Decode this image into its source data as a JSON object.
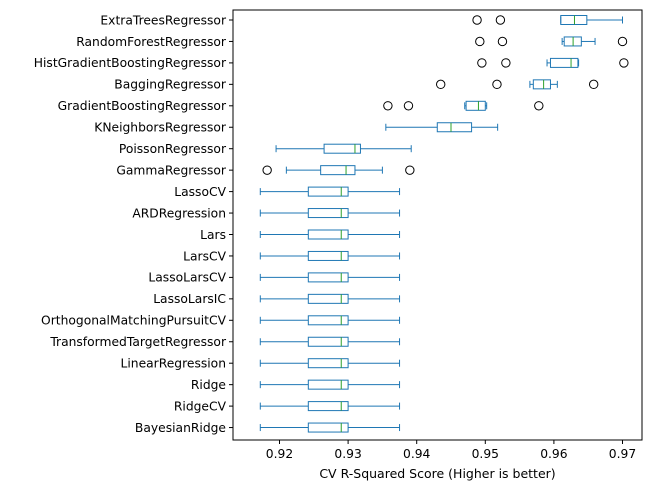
{
  "chart_data": {
    "type": "boxplot",
    "orientation": "horizontal",
    "xlabel": "CV R-Squared Score (Higher is better)",
    "ylabel": "",
    "title": "",
    "xlim": [
      0.915,
      0.973
    ],
    "xticks": [
      0.92,
      0.93,
      0.94,
      0.95,
      0.96,
      0.97
    ],
    "xtick_labels": [
      "0.92",
      "0.93",
      "0.94",
      "0.95",
      "0.96",
      "0.97"
    ],
    "grid": false,
    "colors": {
      "box": "#1f77b4",
      "median": "#2ca02c",
      "axis": "#000000"
    },
    "series": [
      {
        "name": "ExtraTreesRegressor",
        "whisker_low": 0.961,
        "q1": 0.961,
        "median": 0.963,
        "q3": 0.9648,
        "whisker_high": 0.97,
        "outliers": [
          0.9488,
          0.9522
        ]
      },
      {
        "name": "RandomForestRegressor",
        "whisker_low": 0.9612,
        "q1": 0.9615,
        "median": 0.9628,
        "q3": 0.964,
        "whisker_high": 0.966,
        "outliers": [
          0.9492,
          0.9525,
          0.97
        ]
      },
      {
        "name": "HistGradientBoostingRegressor",
        "whisker_low": 0.959,
        "q1": 0.9595,
        "median": 0.9625,
        "q3": 0.9635,
        "whisker_high": 0.9636,
        "outliers": [
          0.9495,
          0.953,
          0.9702
        ]
      },
      {
        "name": "BaggingRegressor",
        "whisker_low": 0.9565,
        "q1": 0.957,
        "median": 0.9585,
        "q3": 0.9595,
        "whisker_high": 0.9605,
        "outliers": [
          0.9435,
          0.9517,
          0.9658
        ]
      },
      {
        "name": "GradientBoostingRegressor",
        "whisker_low": 0.947,
        "q1": 0.9472,
        "median": 0.949,
        "q3": 0.95,
        "whisker_high": 0.9502,
        "outliers": [
          0.9358,
          0.9388,
          0.9578
        ]
      },
      {
        "name": "KNeighborsRegressor",
        "whisker_low": 0.9355,
        "q1": 0.943,
        "median": 0.945,
        "q3": 0.948,
        "whisker_high": 0.9518,
        "outliers": []
      },
      {
        "name": "PoissonRegressor",
        "whisker_low": 0.9195,
        "q1": 0.9265,
        "median": 0.931,
        "q3": 0.9318,
        "whisker_high": 0.9392,
        "outliers": []
      },
      {
        "name": "GammaRegressor",
        "whisker_low": 0.921,
        "q1": 0.926,
        "median": 0.9297,
        "q3": 0.931,
        "whisker_high": 0.935,
        "outliers": [
          0.9182,
          0.939
        ]
      },
      {
        "name": "LassoCV",
        "whisker_low": 0.9172,
        "q1": 0.9242,
        "median": 0.929,
        "q3": 0.93,
        "whisker_high": 0.9375,
        "outliers": []
      },
      {
        "name": "ARDRegression",
        "whisker_low": 0.9172,
        "q1": 0.9242,
        "median": 0.929,
        "q3": 0.93,
        "whisker_high": 0.9375,
        "outliers": []
      },
      {
        "name": "Lars",
        "whisker_low": 0.9172,
        "q1": 0.9242,
        "median": 0.929,
        "q3": 0.93,
        "whisker_high": 0.9375,
        "outliers": []
      },
      {
        "name": "LarsCV",
        "whisker_low": 0.9172,
        "q1": 0.9242,
        "median": 0.929,
        "q3": 0.93,
        "whisker_high": 0.9375,
        "outliers": []
      },
      {
        "name": "LassoLarsCV",
        "whisker_low": 0.9172,
        "q1": 0.9242,
        "median": 0.929,
        "q3": 0.93,
        "whisker_high": 0.9375,
        "outliers": []
      },
      {
        "name": "LassoLarsIC",
        "whisker_low": 0.9172,
        "q1": 0.9242,
        "median": 0.929,
        "q3": 0.93,
        "whisker_high": 0.9375,
        "outliers": []
      },
      {
        "name": "OrthogonalMatchingPursuitCV",
        "whisker_low": 0.9172,
        "q1": 0.9242,
        "median": 0.929,
        "q3": 0.93,
        "whisker_high": 0.9375,
        "outliers": []
      },
      {
        "name": "TransformedTargetRegressor",
        "whisker_low": 0.9172,
        "q1": 0.9242,
        "median": 0.929,
        "q3": 0.93,
        "whisker_high": 0.9375,
        "outliers": []
      },
      {
        "name": "LinearRegression",
        "whisker_low": 0.9172,
        "q1": 0.9242,
        "median": 0.929,
        "q3": 0.93,
        "whisker_high": 0.9375,
        "outliers": []
      },
      {
        "name": "Ridge",
        "whisker_low": 0.9172,
        "q1": 0.9242,
        "median": 0.929,
        "q3": 0.93,
        "whisker_high": 0.9375,
        "outliers": []
      },
      {
        "name": "RidgeCV",
        "whisker_low": 0.9172,
        "q1": 0.9242,
        "median": 0.929,
        "q3": 0.93,
        "whisker_high": 0.9375,
        "outliers": []
      },
      {
        "name": "BayesianRidge",
        "whisker_low": 0.9172,
        "q1": 0.9242,
        "median": 0.929,
        "q3": 0.93,
        "whisker_high": 0.9375,
        "outliers": []
      }
    ]
  }
}
